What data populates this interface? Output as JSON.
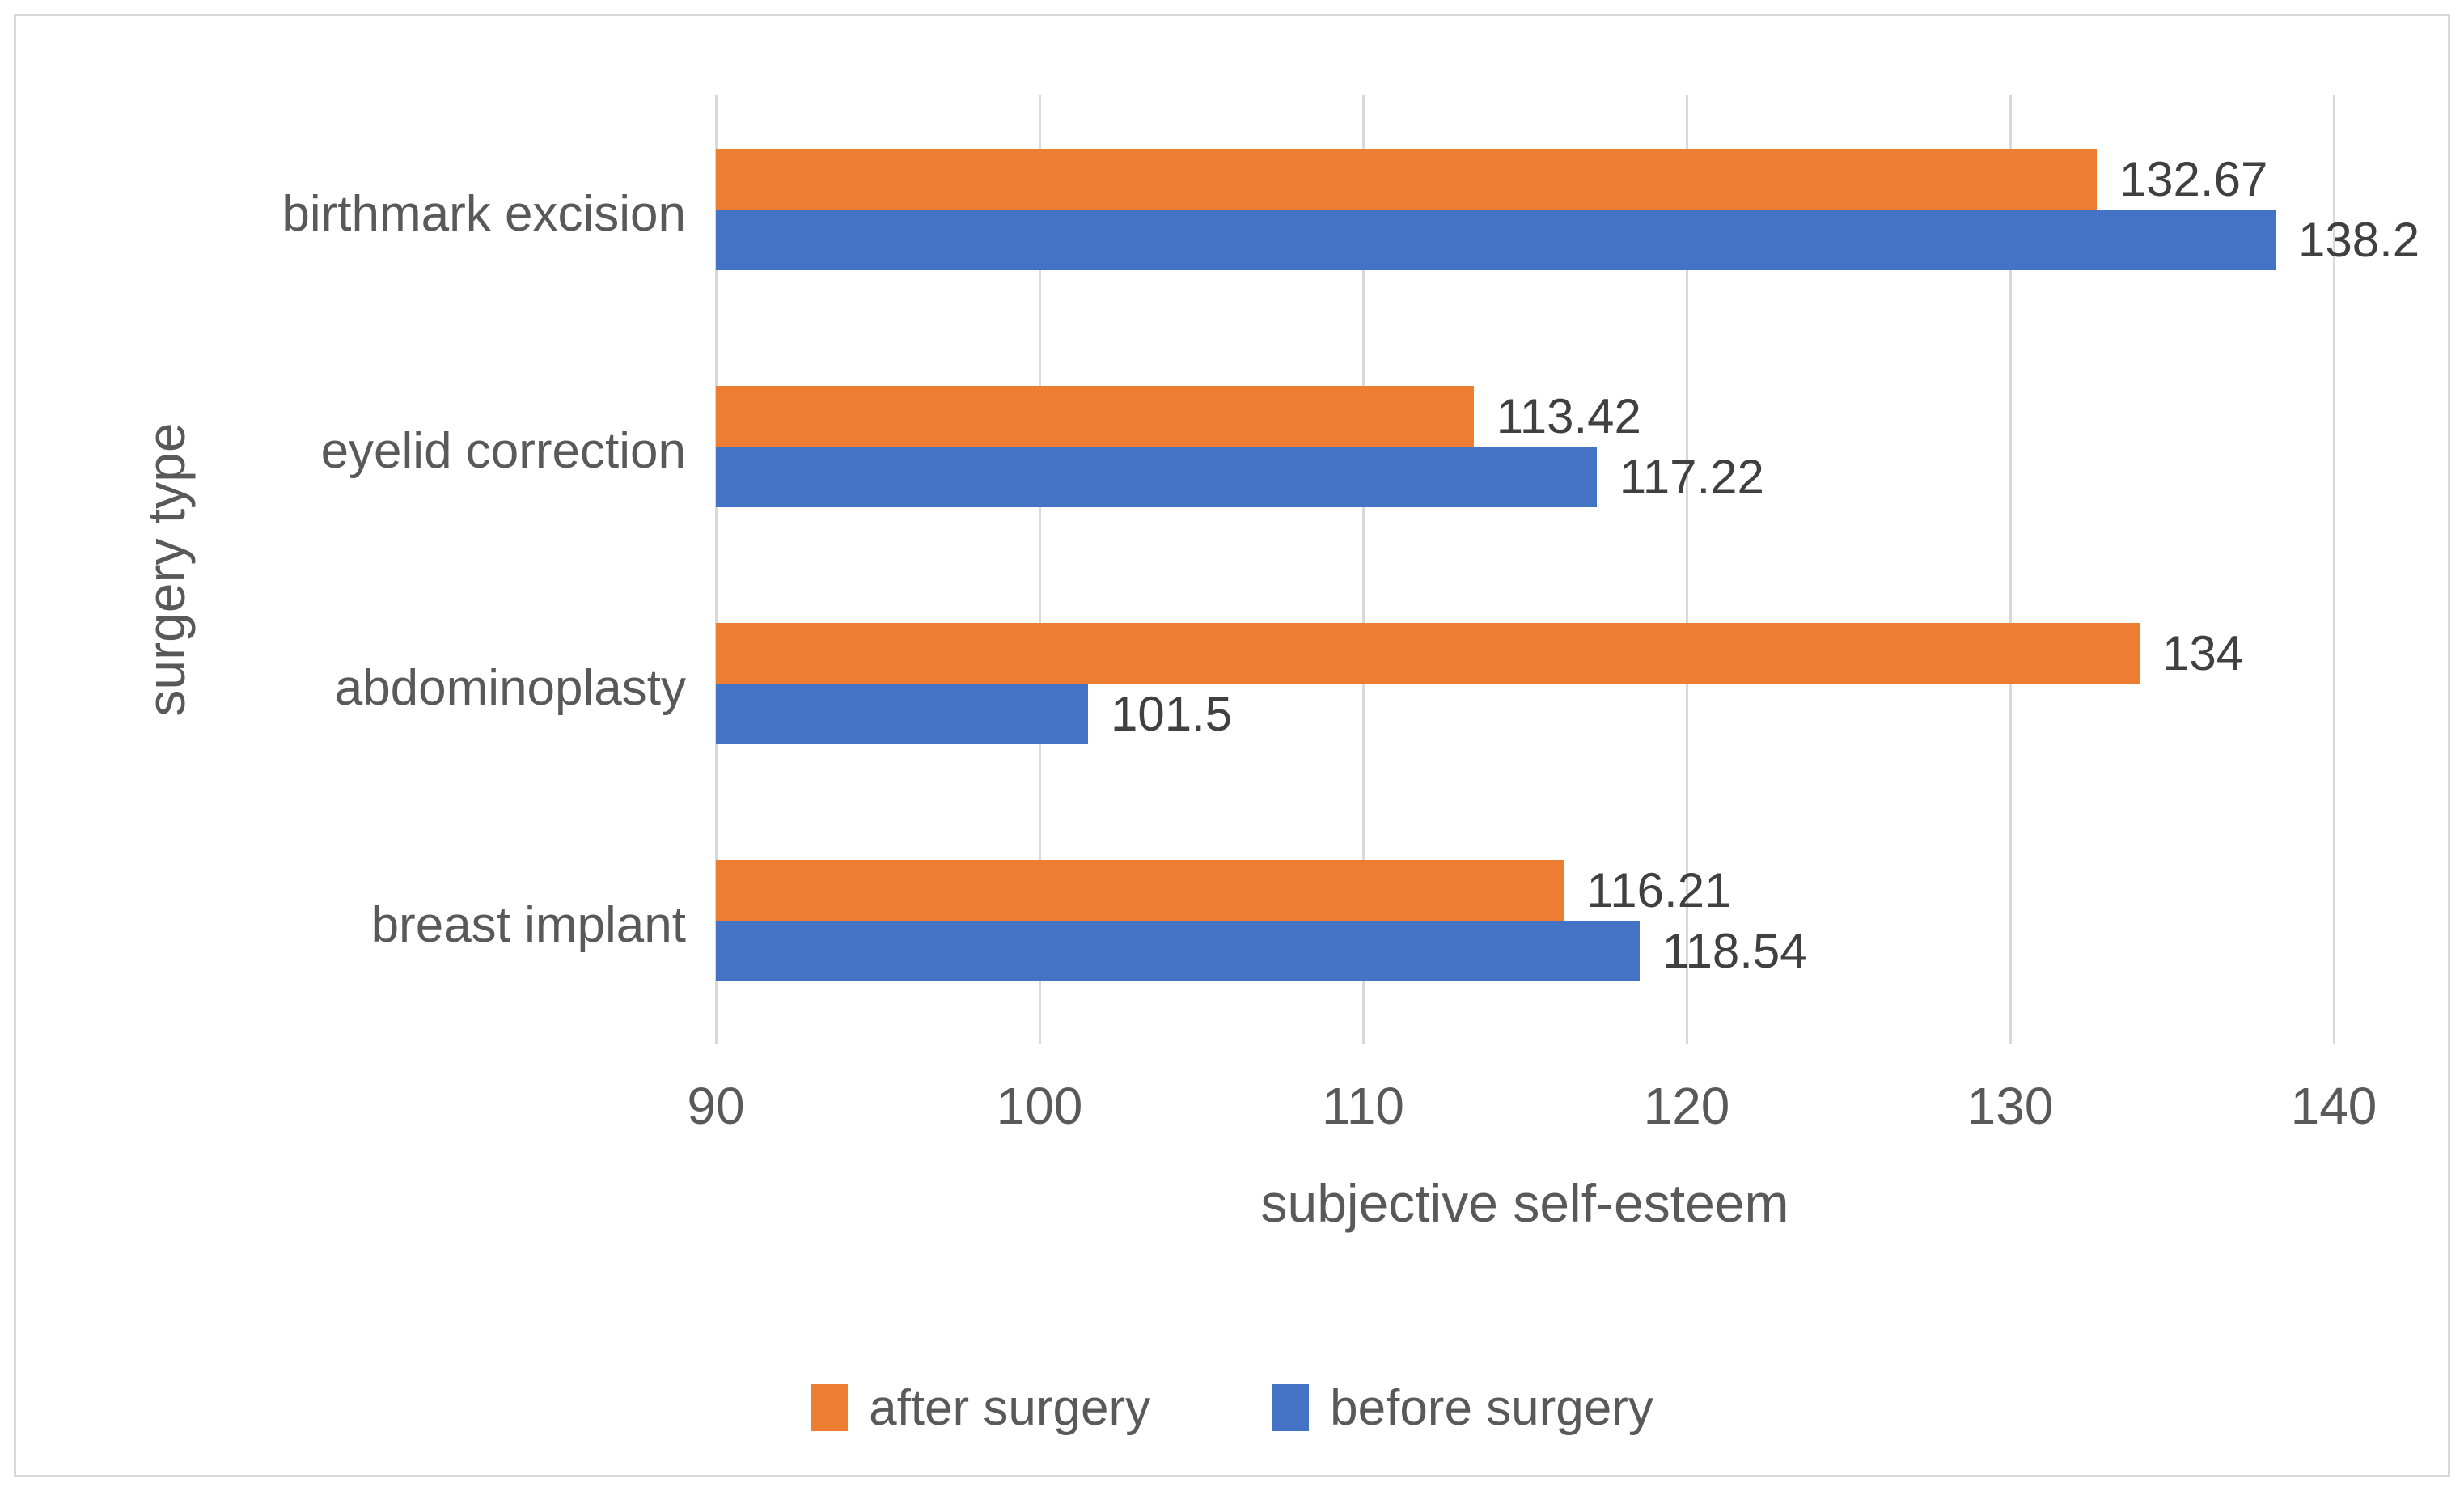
{
  "chart_data": {
    "type": "bar",
    "orientation": "horizontal",
    "title": "",
    "categories": [
      "birthmark excision",
      "eyelid correction",
      "abdominoplasty",
      "breast implant"
    ],
    "series": [
      {
        "name": "after surgery",
        "color": "#ED7D31",
        "values": [
          132.67,
          113.42,
          134,
          116.21
        ]
      },
      {
        "name": "before surgery",
        "color": "#4472C4",
        "values": [
          138.2,
          117.22,
          101.5,
          118.54
        ]
      }
    ],
    "xlabel": "subjective self-esteem",
    "ylabel": "surgery type",
    "xlim": [
      90,
      140
    ],
    "xticks": [
      90,
      100,
      110,
      120,
      130,
      140
    ],
    "grid": "vertical-gridlines-on",
    "legend_position": "bottom-center",
    "data_labels": "outside-end"
  },
  "colors": {
    "after_series": "#ED7D31",
    "before_series": "#4472C4",
    "gridline": "#D9D9D9",
    "frame_border": "#D8D8D8",
    "axis_text": "#595959",
    "data_label_text": "#404040",
    "background": "#FFFFFF"
  }
}
